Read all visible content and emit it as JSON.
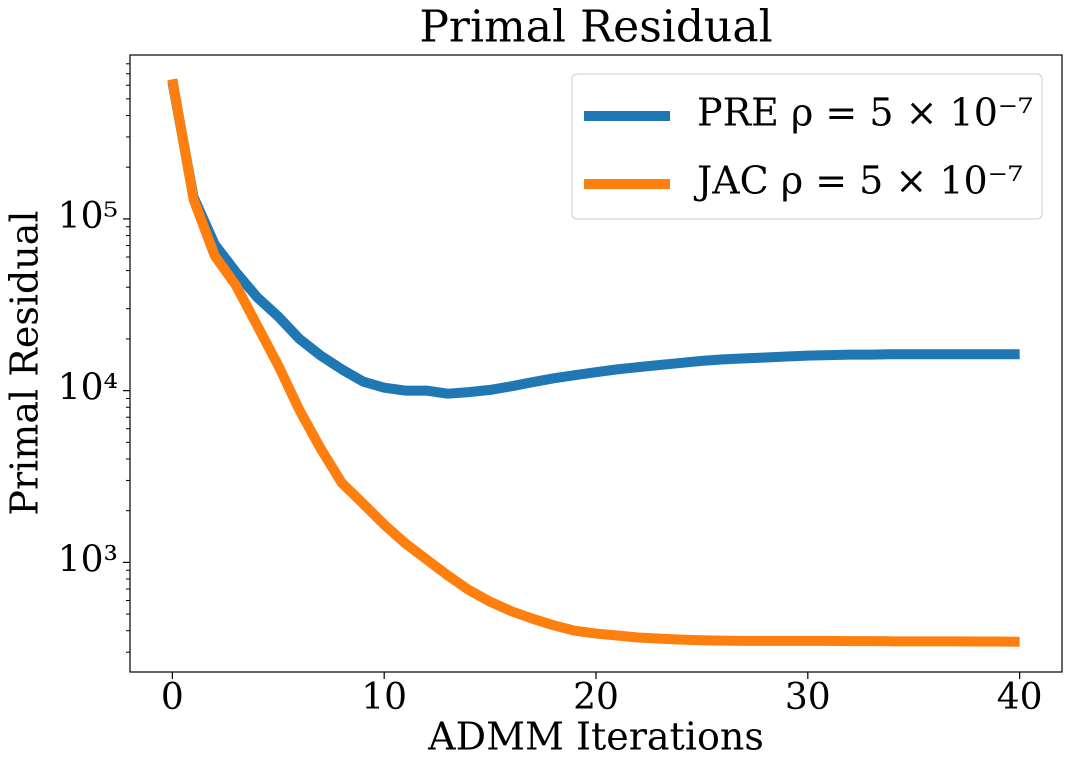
{
  "chart_data": {
    "type": "line",
    "title": "Primal Residual",
    "xlabel": "ADMM Iterations",
    "ylabel": "Primal Residual",
    "x": [
      0,
      1,
      2,
      3,
      4,
      5,
      6,
      7,
      8,
      9,
      10,
      11,
      12,
      13,
      14,
      15,
      16,
      17,
      18,
      19,
      20,
      21,
      22,
      23,
      24,
      25,
      26,
      27,
      28,
      29,
      30,
      31,
      32,
      33,
      34,
      35,
      36,
      37,
      38,
      39,
      40
    ],
    "series": [
      {
        "name": "PRE ρ = 5 × 10⁻⁷",
        "color": "#1f77b4",
        "values": [
          630000,
          134000,
          71000,
          49000,
          35000,
          27000,
          20000,
          16000,
          13300,
          11300,
          10400,
          10000,
          10000,
          9600,
          9800,
          10100,
          10600,
          11200,
          11800,
          12300,
          12800,
          13300,
          13700,
          14100,
          14500,
          14900,
          15200,
          15400,
          15600,
          15800,
          16000,
          16100,
          16200,
          16200,
          16300,
          16300,
          16300,
          16300,
          16300,
          16300,
          16300
        ]
      },
      {
        "name": "JAC ρ = 5 × 10⁻⁷",
        "color": "#ff7f0e",
        "values": [
          650000,
          130000,
          61000,
          41000,
          24000,
          14000,
          7700,
          4600,
          2900,
          2200,
          1660,
          1290,
          1040,
          840,
          690,
          590,
          520,
          470,
          430,
          400,
          385,
          375,
          365,
          360,
          355,
          352,
          350,
          349,
          349,
          349,
          349,
          349,
          348,
          348,
          347,
          347,
          347,
          347,
          346,
          346,
          345
        ]
      }
    ],
    "xlim": [
      -2,
      42
    ],
    "xticks": [
      0,
      10,
      20,
      30,
      40
    ],
    "ylim": [
      230,
      900000
    ],
    "log_y": true,
    "yticks": [
      {
        "value": 1000,
        "label": "10³"
      },
      {
        "value": 10000,
        "label": "10⁴"
      },
      {
        "value": 100000,
        "label": "10⁵"
      }
    ],
    "y_minor_ticks": [
      300,
      400,
      500,
      600,
      700,
      800,
      900,
      2000,
      3000,
      4000,
      5000,
      6000,
      7000,
      8000,
      9000,
      20000,
      30000,
      40000,
      50000,
      60000,
      70000,
      80000,
      90000,
      200000,
      300000,
      400000,
      500000,
      600000,
      700000,
      800000
    ],
    "legend": "upper right",
    "grid": false
  }
}
